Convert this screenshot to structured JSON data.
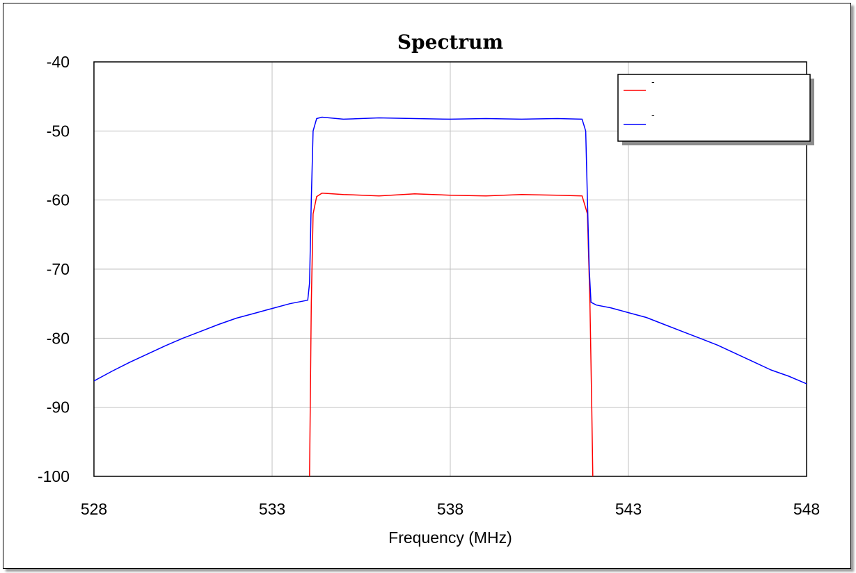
{
  "chart_data": {
    "type": "line",
    "title": "Spectrum",
    "xlabel": "Frequency (MHz)",
    "ylabel": "",
    "xlim": [
      528,
      548
    ],
    "ylim": [
      -100,
      -40
    ],
    "xticks": [
      528,
      533,
      538,
      543,
      548
    ],
    "yticks": [
      -40,
      -50,
      -60,
      -70,
      -80,
      -90,
      -100
    ],
    "grid": true,
    "legend_position": "top-right",
    "series": [
      {
        "name": "-",
        "color": "#ff0000",
        "x": [
          534.05,
          534.1,
          534.15,
          534.25,
          534.4,
          535.0,
          536.0,
          537.0,
          538.0,
          539.0,
          540.0,
          541.0,
          541.7,
          541.85,
          541.92,
          541.97,
          542.0
        ],
        "y": [
          -100,
          -75,
          -62,
          -59.5,
          -59.0,
          -59.2,
          -59.4,
          -59.1,
          -59.3,
          -59.4,
          -59.2,
          -59.3,
          -59.4,
          -62,
          -75,
          -90,
          -100
        ]
      },
      {
        "name": "-",
        "color": "#0000ff",
        "x": [
          528.0,
          528.5,
          529.0,
          529.5,
          530.0,
          530.5,
          531.0,
          531.5,
          532.0,
          532.5,
          533.0,
          533.5,
          534.0,
          534.05,
          534.1,
          534.15,
          534.25,
          534.4,
          535.0,
          536.0,
          537.0,
          538.0,
          539.0,
          540.0,
          541.0,
          541.7,
          541.8,
          541.85,
          541.9,
          541.95,
          542.1,
          542.5,
          543.0,
          543.5,
          544.0,
          544.5,
          545.0,
          545.5,
          546.0,
          546.5,
          547.0,
          547.5,
          548.0
        ],
        "y": [
          -86.2,
          -84.8,
          -83.5,
          -82.3,
          -81.1,
          -80.0,
          -79.0,
          -78.0,
          -77.1,
          -76.4,
          -75.7,
          -75.0,
          -74.5,
          -72,
          -60,
          -50,
          -48.2,
          -48.0,
          -48.3,
          -48.1,
          -48.2,
          -48.3,
          -48.2,
          -48.3,
          -48.2,
          -48.3,
          -50,
          -60,
          -70,
          -74.8,
          -75.2,
          -75.6,
          -76.3,
          -77.0,
          -78.0,
          -79.0,
          -80.0,
          -81.0,
          -82.2,
          -83.4,
          -84.6,
          -85.5,
          -86.6
        ]
      }
    ]
  }
}
